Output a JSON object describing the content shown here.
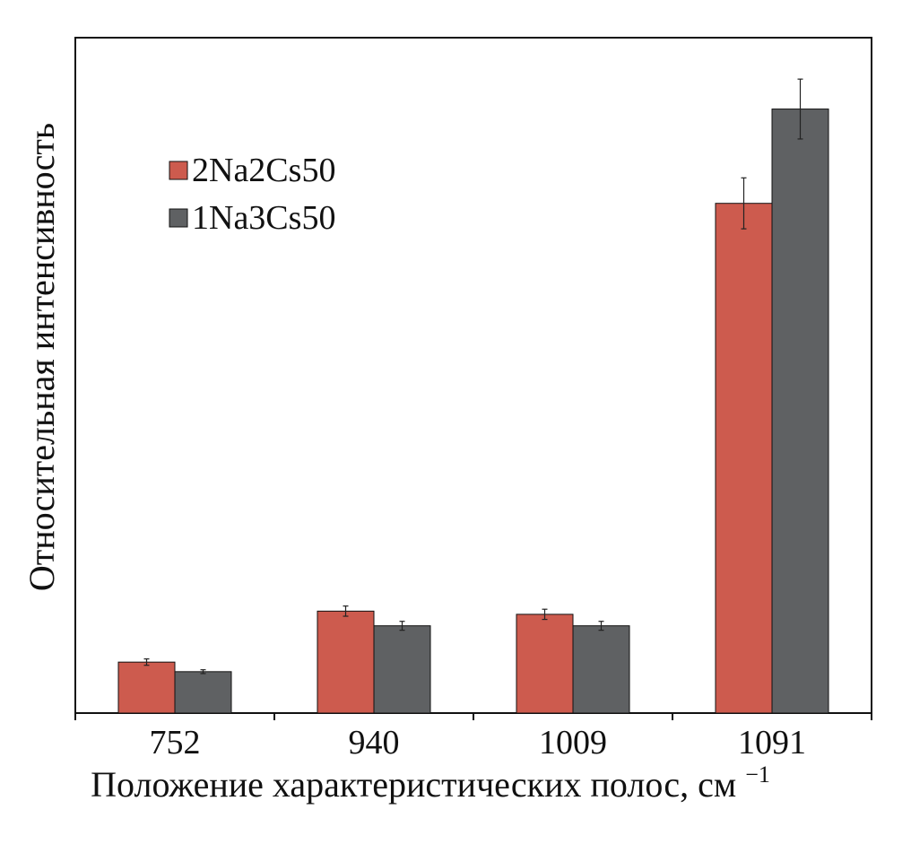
{
  "chart_data": {
    "type": "bar",
    "title": "",
    "xlabel": "Положение характеристических полос, см",
    "xlabel_superscript": "−1",
    "ylabel": "Относительная интенсивность",
    "categories": [
      "752",
      "940",
      "1009",
      "1091"
    ],
    "ylim": [
      0,
      10.6
    ],
    "y_ticks_shown": false,
    "grid": false,
    "legend_position": "top-left",
    "series": [
      {
        "name": "2Na2Cs50",
        "color": "#cd5b4e",
        "values": [
          0.8,
          1.6,
          1.55,
          8.0
        ],
        "errors": [
          0.05,
          0.08,
          0.08,
          0.4
        ]
      },
      {
        "name": "1Na3Cs50",
        "color": "#5f6163",
        "values": [
          0.65,
          1.37,
          1.37,
          9.48
        ],
        "errors": [
          0.03,
          0.07,
          0.07,
          0.47
        ]
      }
    ]
  }
}
